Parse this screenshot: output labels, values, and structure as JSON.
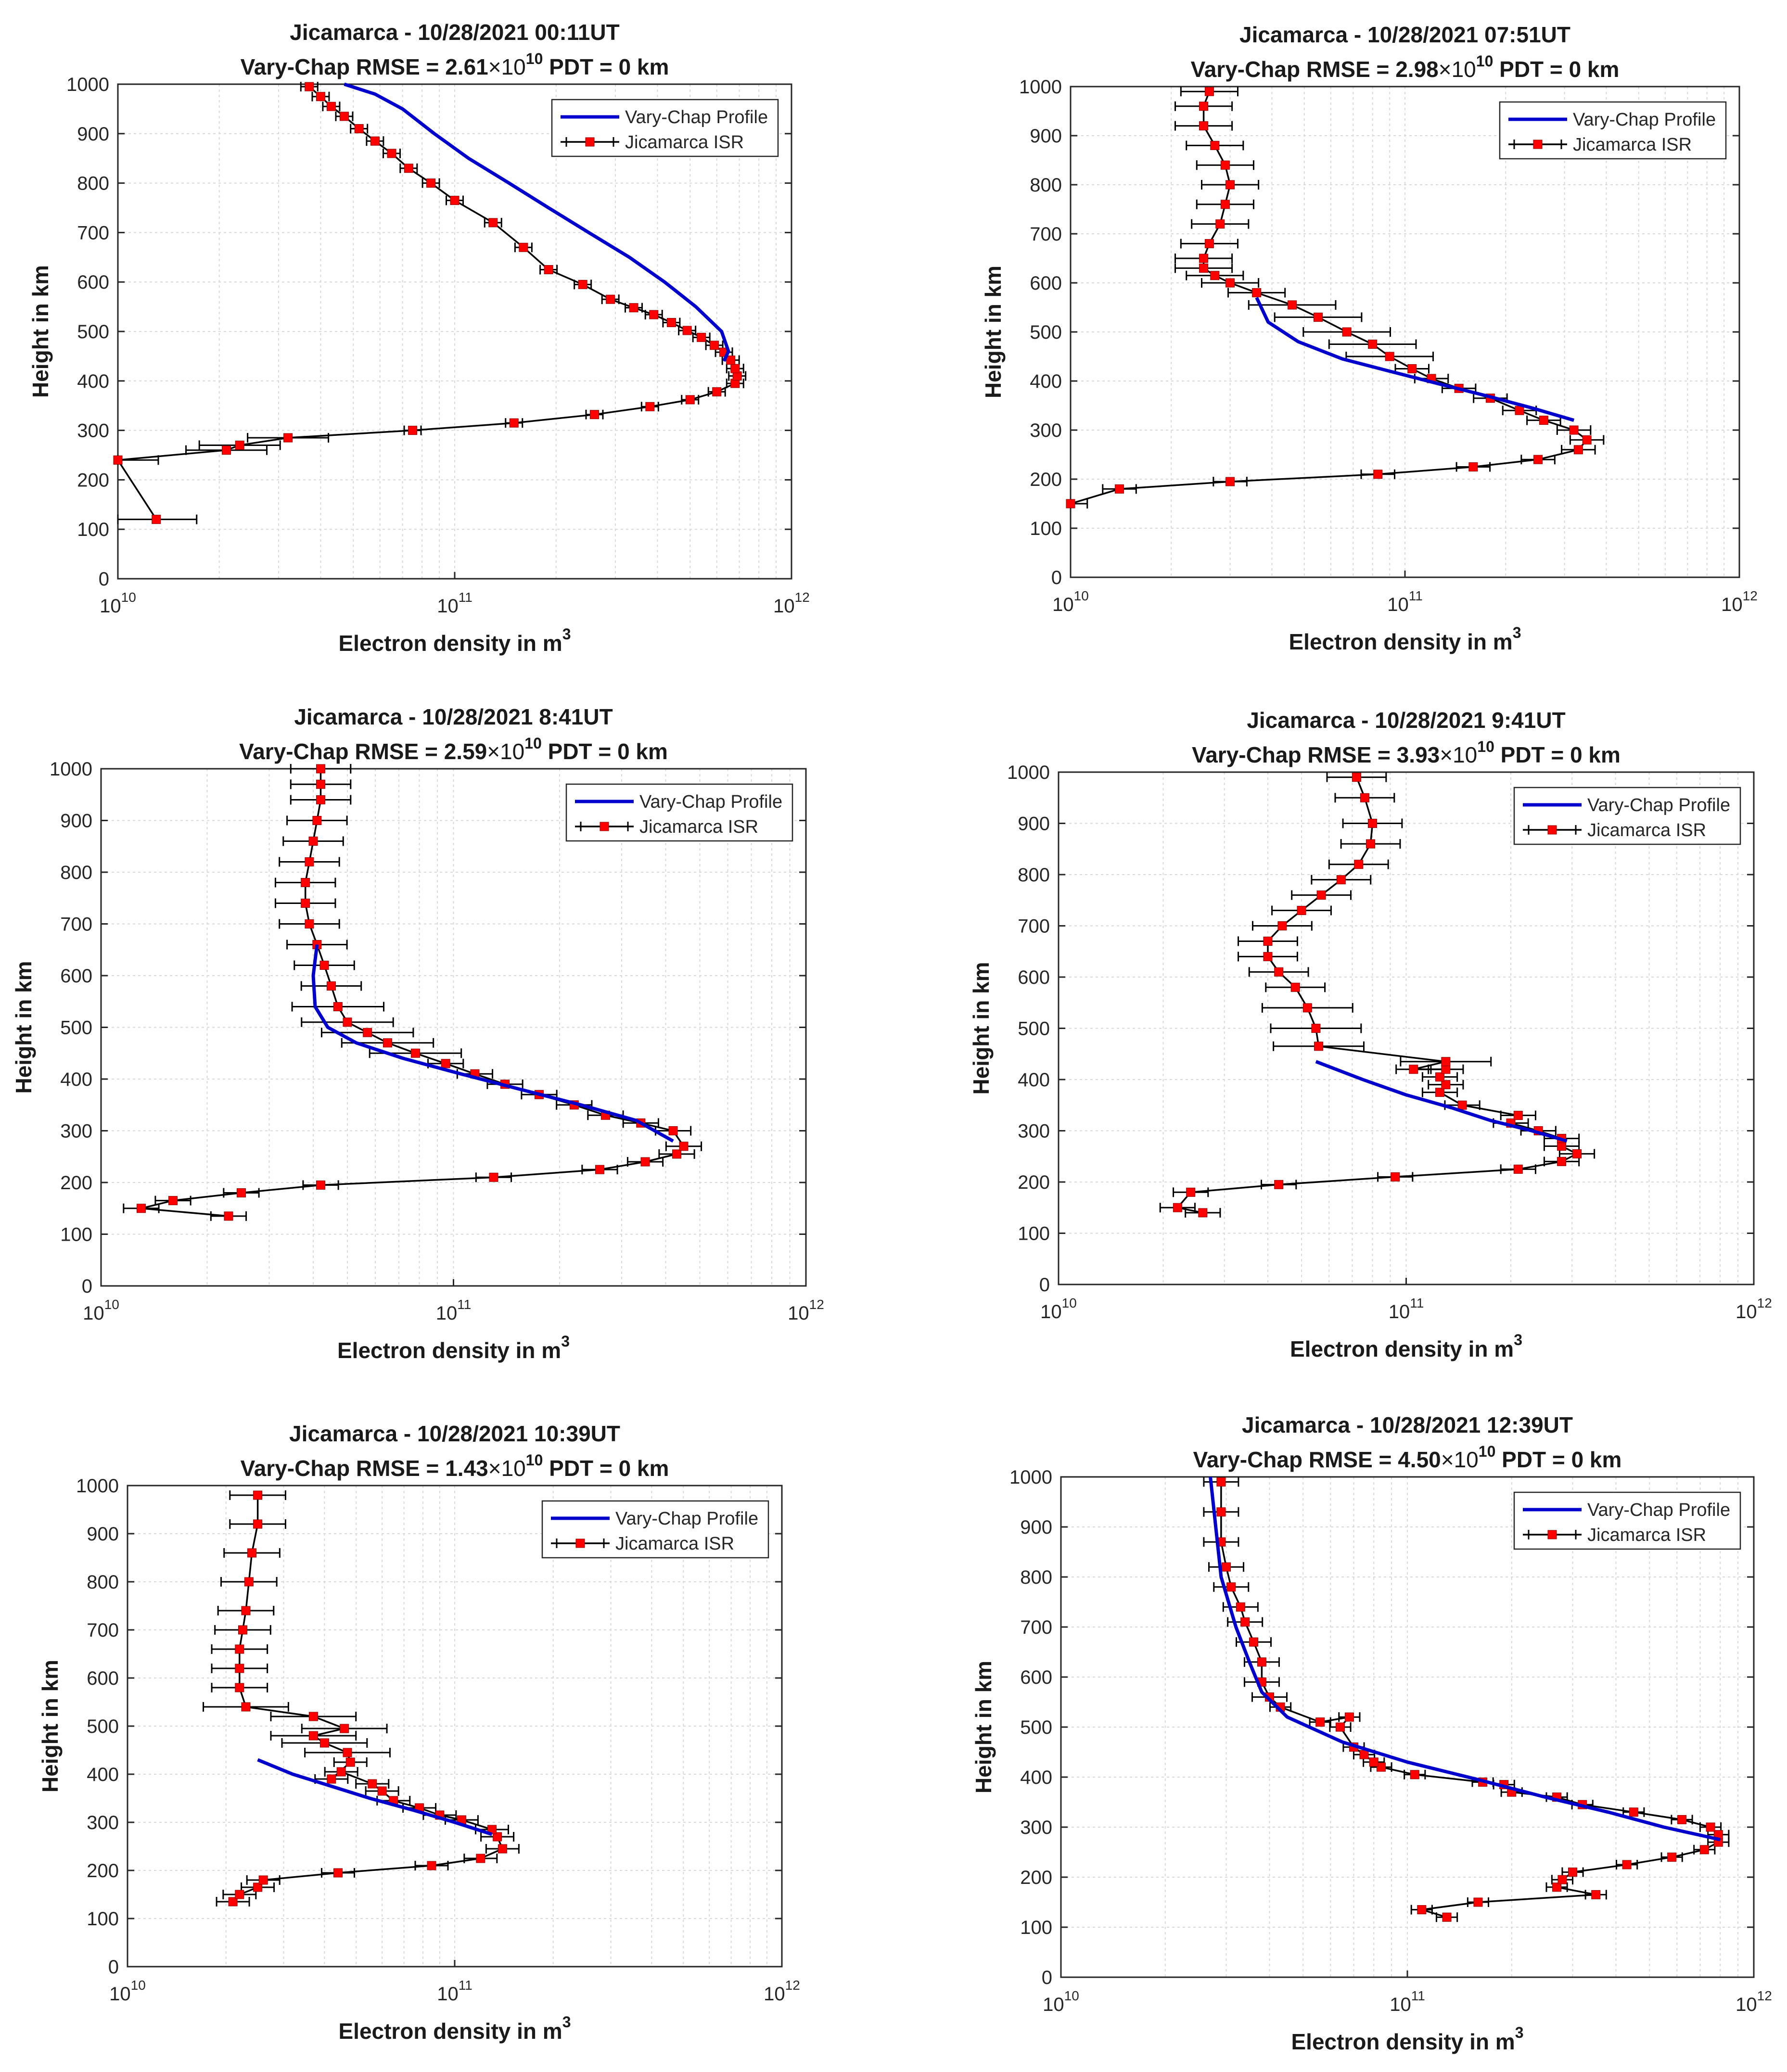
{
  "chart_data": [
    {
      "type": "line",
      "title": "Jicamarca - 10/28/2021 00:11UT",
      "subtitle_prefix": "Vary-Chap RMSE = ",
      "rmse": "2.61",
      "rmse_exp": "10",
      "subtitle_suffix": "  PDT = 0 km",
      "xlabel": "Electron density in m",
      "xlabel_exp": "3",
      "ylabel": "Height in km",
      "xscale": "log",
      "xlim": [
        10000000000.0,
        1000000000000.0
      ],
      "ylim": [
        0,
        1000
      ],
      "legend": [
        "Vary-Chap Profile",
        "Jicamarca ISR"
      ],
      "legend_position": "top-right",
      "series": [
        {
          "name": "Vary-Chap Profile",
          "x": [
            630000000000.0,
            650000000000.0,
            620000000000.0,
            520000000000.0,
            420000000000.0,
            330000000000.0,
            250000000000.0,
            190000000000.0,
            145000000000.0,
            110000000000.0,
            87000000000.0,
            70000000000.0,
            58000000000.0,
            47000000000.0
          ],
          "y": [
            440,
            460,
            500,
            550,
            600,
            650,
            700,
            750,
            800,
            850,
            900,
            950,
            980,
            1000
          ]
        },
        {
          "name": "Jicamarca ISR",
          "x": [
            13000000000.0,
            10000000000.0,
            21000000000.0,
            23000000000.0,
            32000000000.0,
            75000000000.0,
            150000000000.0,
            260000000000.0,
            380000000000.0,
            500000000000.0,
            600000000000.0,
            680000000000.0,
            690000000000.0,
            680000000000.0,
            660000000000.0,
            630000000000.0,
            590000000000.0,
            540000000000.0,
            490000000000.0,
            440000000000.0,
            390000000000.0,
            340000000000.0,
            290000000000.0,
            240000000000.0,
            190000000000.0,
            160000000000.0,
            130000000000.0,
            100000000000.0,
            85000000000.0,
            73000000000.0,
            65000000000.0,
            58000000000.0,
            52000000000.0,
            47000000000.0,
            43000000000.0,
            40000000000.0,
            37000000000.0
          ],
          "y": [
            120,
            240,
            260,
            270,
            285,
            300,
            315,
            332,
            348,
            362,
            378,
            395,
            410,
            425,
            442,
            458,
            472,
            488,
            502,
            518,
            534,
            548,
            565,
            595,
            625,
            670,
            720,
            765,
            800,
            830,
            860,
            885,
            910,
            935,
            955,
            975,
            995
          ]
        }
      ]
    },
    {
      "type": "line",
      "title": "Jicamarca - 10/28/2021 07:51UT",
      "subtitle_prefix": "Vary-Chap RMSE = ",
      "rmse": "2.98",
      "rmse_exp": "10",
      "subtitle_suffix": "  PDT = 0 km",
      "xlabel": "Electron density in m",
      "xlabel_exp": "3",
      "ylabel": "Height in km",
      "xscale": "log",
      "xlim": [
        10000000000.0,
        1000000000000.0
      ],
      "ylim": [
        0,
        1000
      ],
      "legend": [
        "Vary-Chap Profile",
        "Jicamarca ISR"
      ],
      "legend_position": "top-right",
      "series": [
        {
          "name": "Vary-Chap Profile",
          "x": [
            320000000000.0,
            240000000000.0,
            175000000000.0,
            125000000000.0,
            90000000000.0,
            65000000000.0,
            48000000000.0,
            39000000000.0,
            36000000000.0
          ],
          "y": [
            320,
            345,
            370,
            395,
            420,
            445,
            480,
            520,
            570
          ]
        },
        {
          "name": "Jicamarca ISR",
          "x": [
            10000000000.0,
            14000000000.0,
            30000000000.0,
            83000000000.0,
            160000000000.0,
            250000000000.0,
            330000000000.0,
            350000000000.0,
            320000000000.0,
            260000000000.0,
            220000000000.0,
            180000000000.0,
            145000000000.0,
            120000000000.0,
            105000000000.0,
            90000000000.0,
            80000000000.0,
            67000000000.0,
            55000000000.0,
            46000000000.0,
            36000000000.0,
            30000000000.0,
            27000000000.0,
            25000000000.0,
            25000000000.0,
            26000000000.0,
            28000000000.0,
            29000000000.0,
            30000000000.0,
            29000000000.0,
            27000000000.0,
            25000000000.0,
            25000000000.0,
            26000000000.0
          ],
          "y": [
            150,
            180,
            195,
            210,
            225,
            240,
            260,
            280,
            300,
            320,
            340,
            365,
            385,
            405,
            425,
            450,
            475,
            500,
            530,
            555,
            580,
            600,
            615,
            630,
            650,
            680,
            720,
            760,
            800,
            840,
            880,
            920,
            960,
            990
          ]
        }
      ]
    },
    {
      "type": "line",
      "title": "Jicamarca - 10/28/2021 8:41UT",
      "subtitle_prefix": "Vary-Chap RMSE = ",
      "rmse": "2.59",
      "rmse_exp": "10",
      "subtitle_suffix": "  PDT = 0 km",
      "xlabel": "Electron density in m",
      "xlabel_exp": "3",
      "ylabel": "Height in km",
      "xscale": "log",
      "xlim": [
        10000000000.0,
        1000000000000.0
      ],
      "ylim": [
        0,
        1000
      ],
      "legend": [
        "Vary-Chap Profile",
        "Jicamarca ISR"
      ],
      "legend_position": "top-right",
      "series": [
        {
          "name": "Vary-Chap Profile",
          "x": [
            420000000000.0,
            330000000000.0,
            230000000000.0,
            155000000000.0,
            105000000000.0,
            72000000000.0,
            53000000000.0,
            44000000000.0,
            40500000000.0,
            40000000000.0,
            41000000000.0
          ],
          "y": [
            280,
            320,
            350,
            380,
            410,
            440,
            470,
            500,
            540,
            600,
            660
          ]
        },
        {
          "name": "Jicamarca ISR",
          "x": [
            23000000000.0,
            13000000000.0,
            16000000000.0,
            25000000000.0,
            42000000000.0,
            130000000000.0,
            260000000000.0,
            350000000000.0,
            430000000000.0,
            450000000000.0,
            420000000000.0,
            340000000000.0,
            270000000000.0,
            220000000000.0,
            175000000000.0,
            140000000000.0,
            115000000000.0,
            95000000000.0,
            78000000000.0,
            65000000000.0,
            57000000000.0,
            50000000000.0,
            47000000000.0,
            45000000000.0,
            43000000000.0,
            41000000000.0,
            39000000000.0,
            38000000000.0,
            38000000000.0,
            39000000000.0,
            40000000000.0,
            41000000000.0,
            42000000000.0,
            42000000000.0,
            42000000000.0
          ],
          "y": [
            135,
            150,
            165,
            180,
            195,
            210,
            225,
            240,
            255,
            270,
            300,
            315,
            330,
            350,
            370,
            390,
            410,
            430,
            450,
            470,
            490,
            510,
            540,
            580,
            620,
            660,
            700,
            740,
            780,
            820,
            860,
            900,
            940,
            970,
            1000
          ]
        }
      ]
    },
    {
      "type": "line",
      "title": "Jicamarca - 10/28/2021 9:41UT",
      "subtitle_prefix": "Vary-Chap RMSE = ",
      "rmse": "3.93",
      "rmse_exp": "10",
      "subtitle_suffix": "  PDT = 0 km",
      "xlabel": "Electron density in m",
      "xlabel_exp": "3",
      "ylabel": "Height in km",
      "xscale": "log",
      "xlim": [
        10000000000.0,
        1000000000000.0
      ],
      "ylim": [
        0,
        1000
      ],
      "legend": [
        "Vary-Chap Profile",
        "Jicamarca ISR"
      ],
      "legend_position": "top-right",
      "series": [
        {
          "name": "Vary-Chap Profile",
          "x": [
            290000000000.0,
            230000000000.0,
            175000000000.0,
            135000000000.0,
            100000000000.0,
            75000000000.0,
            55000000000.0
          ],
          "y": [
            280,
            300,
            320,
            345,
            370,
            400,
            435
          ]
        },
        {
          "name": "Jicamarca ISR",
          "x": [
            26000000000.0,
            22000000000.0,
            24000000000.0,
            43000000000.0,
            93000000000.0,
            210000000000.0,
            280000000000.0,
            310000000000.0,
            280000000000.0,
            280000000000.0,
            240000000000.0,
            200000000000.0,
            210000000000.0,
            145000000000.0,
            125000000000.0,
            130000000000.0,
            125000000000.0,
            130000000000.0,
            105000000000.0,
            130000000000.0,
            56000000000.0,
            55000000000.0,
            52000000000.0,
            48000000000.0,
            43000000000.0,
            40000000000.0,
            40000000000.0,
            44000000000.0,
            50000000000.0,
            57000000000.0,
            65000000000.0,
            73000000000.0,
            79000000000.0,
            80000000000.0,
            76000000000.0,
            72000000000.0
          ],
          "y": [
            140,
            150,
            180,
            195,
            210,
            225,
            240,
            255,
            270,
            285,
            300,
            315,
            330,
            350,
            375,
            390,
            405,
            420,
            420,
            435,
            465,
            500,
            540,
            580,
            610,
            640,
            670,
            700,
            730,
            760,
            790,
            820,
            860,
            900,
            950,
            990
          ]
        }
      ]
    },
    {
      "type": "line",
      "title": "Jicamarca - 10/28/2021 10:39UT",
      "subtitle_prefix": "Vary-Chap RMSE = ",
      "rmse": "1.43",
      "rmse_exp": "10",
      "subtitle_suffix": "  PDT = 0 km",
      "xlabel": "Electron density in m",
      "xlabel_exp": "3",
      "ylabel": "Height in km",
      "xscale": "log",
      "xlim": [
        10000000000.0,
        1000000000000.0
      ],
      "ylim": [
        0,
        1000
      ],
      "legend": [
        "Vary-Chap Profile",
        "Jicamarca ISR"
      ],
      "legend_position": "top-right",
      "series": [
        {
          "name": "Vary-Chap Profile",
          "x": [
            130000000000.0,
            100000000000.0,
            75000000000.0,
            55000000000.0,
            42000000000.0,
            32000000000.0,
            25000000000.0
          ],
          "y": [
            275,
            300,
            325,
            350,
            375,
            400,
            430
          ]
        },
        {
          "name": "Jicamarca ISR",
          "x": [
            21000000000.0,
            22000000000.0,
            25000000000.0,
            26000000000.0,
            44000000000.0,
            85000000000.0,
            120000000000.0,
            140000000000.0,
            135000000000.0,
            130000000000.0,
            105000000000.0,
            90000000000.0,
            78000000000.0,
            65000000000.0,
            60000000000.0,
            56000000000.0,
            45000000000.0,
            42000000000.0,
            48000000000.0,
            47000000000.0,
            40000000000.0,
            37000000000.0,
            46000000000.0,
            37000000000.0,
            23000000000.0,
            22000000000.0,
            22000000000.0,
            22000000000.0,
            22500000000.0,
            23000000000.0,
            23500000000.0,
            24000000000.0,
            25000000000.0,
            25000000000.0
          ],
          "y": [
            135,
            150,
            165,
            180,
            195,
            210,
            225,
            245,
            270,
            285,
            305,
            315,
            330,
            345,
            365,
            380,
            405,
            390,
            425,
            445,
            465,
            480,
            495,
            520,
            540,
            580,
            620,
            660,
            700,
            740,
            800,
            860,
            920,
            980
          ]
        }
      ]
    },
    {
      "type": "line",
      "title": "Jicamarca - 10/28/2021 12:39UT",
      "subtitle_prefix": "Vary-Chap RMSE = ",
      "rmse": "4.50",
      "rmse_exp": "10",
      "subtitle_suffix": "  PDT = 0 km",
      "xlabel": "Electron density in m",
      "xlabel_exp": "3",
      "ylabel": "Height in km",
      "xscale": "log",
      "xlim": [
        10000000000.0,
        1000000000000.0
      ],
      "ylim": [
        0,
        1000
      ],
      "legend": [
        "Vary-Chap Profile",
        "Jicamarca ISR"
      ],
      "legend_position": "top-right",
      "series": [
        {
          "name": "Vary-Chap Profile",
          "x": [
            800000000000.0,
            550000000000.0,
            380000000000.0,
            250000000000.0,
            160000000000.0,
            100000000000.0,
            65000000000.0,
            45000000000.0,
            38000000000.0,
            35000000000.0,
            32000000000.0,
            29000000000.0,
            27000000000.0
          ],
          "y": [
            275,
            300,
            330,
            360,
            395,
            430,
            470,
            520,
            570,
            630,
            700,
            800,
            1000
          ]
        },
        {
          "name": "Jicamarca ISR",
          "x": [
            130000000000.0,
            110000000000.0,
            160000000000.0,
            350000000000.0,
            270000000000.0,
            280000000000.0,
            300000000000.0,
            430000000000.0,
            580000000000.0,
            720000000000.0,
            790000000000.0,
            790000000000.0,
            750000000000.0,
            620000000000.0,
            450000000000.0,
            320000000000.0,
            270000000000.0,
            200000000000.0,
            190000000000.0,
            165000000000.0,
            105000000000.0,
            84000000000.0,
            80000000000.0,
            75000000000.0,
            70000000000.0,
            64000000000.0,
            68000000000.0,
            56000000000.0,
            43000000000.0,
            40000000000.0,
            38000000000.0,
            38000000000.0,
            36000000000.0,
            34000000000.0,
            33000000000.0,
            31000000000.0,
            30000000000.0,
            29000000000.0,
            29000000000.0,
            29000000000.0
          ],
          "y": [
            120,
            135,
            150,
            165,
            180,
            195,
            210,
            225,
            240,
            255,
            270,
            285,
            300,
            315,
            330,
            345,
            360,
            370,
            385,
            390,
            405,
            420,
            430,
            445,
            460,
            500,
            520,
            510,
            540,
            560,
            590,
            630,
            670,
            710,
            740,
            780,
            820,
            870,
            930,
            990
          ]
        }
      ]
    }
  ]
}
